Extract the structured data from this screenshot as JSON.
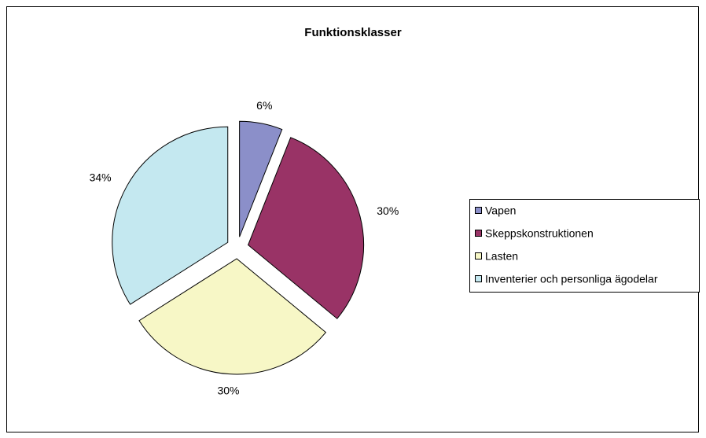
{
  "chart_data": {
    "type": "pie",
    "title": "Funktionsklasser",
    "categories": [
      "Vapen",
      "Skeppskonstruktionen",
      "Lasten",
      "Inventerier och personliga ägodelar"
    ],
    "values": [
      6,
      30,
      30,
      34
    ],
    "value_labels": [
      "6%",
      "30%",
      "30%",
      "34%"
    ],
    "colors": [
      "#8b8fc9",
      "#993366",
      "#f7f7c6",
      "#c4e8f0"
    ],
    "exploded": true,
    "legend": "right"
  }
}
